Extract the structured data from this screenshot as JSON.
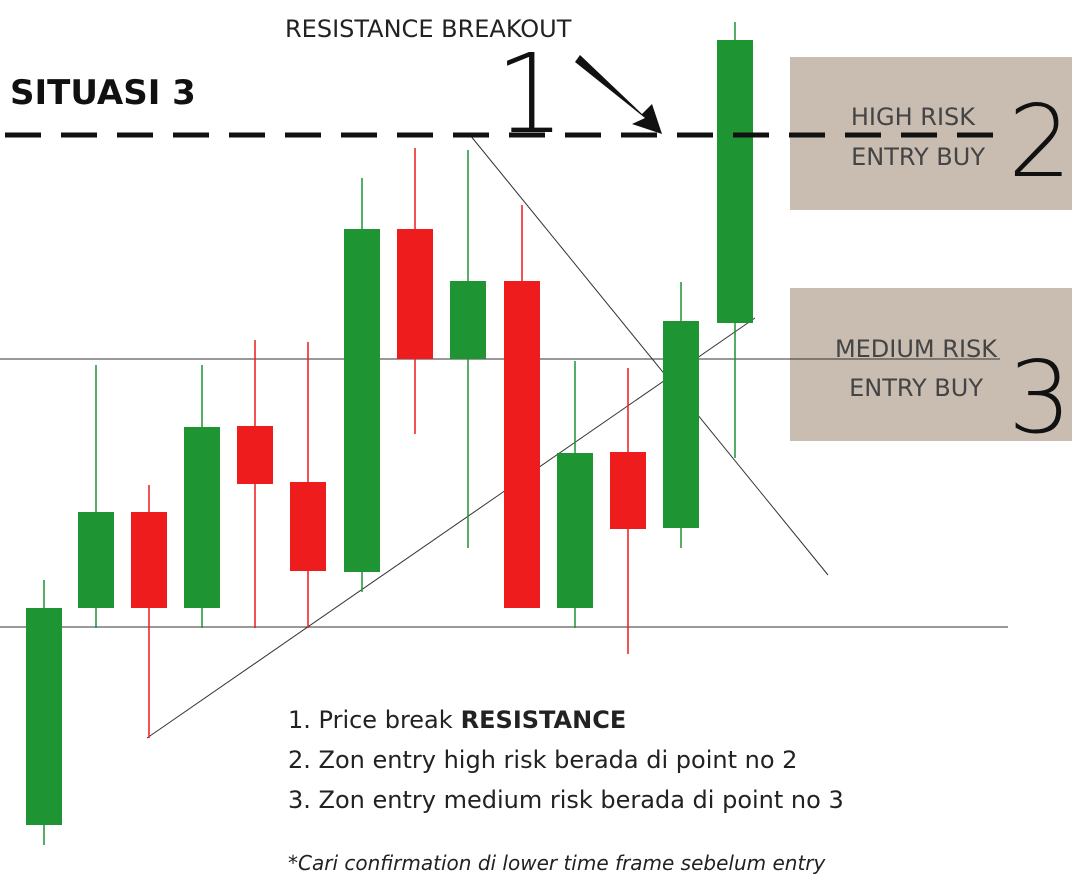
{
  "title": "SITUASI 3",
  "breakout_label": "RESISTANCE BREAKOUT",
  "point_1": "1",
  "zones": [
    {
      "line1": "HIGH RISK",
      "line2": "ENTRY BUY",
      "number": "2"
    },
    {
      "line1": "MEDIUM RISK",
      "line2": "ENTRY BUY",
      "number": "3"
    }
  ],
  "notes": [
    {
      "text": "1. Price break",
      "bold": "RESISTANCE"
    },
    {
      "text": "2. Zon entry high risk berada di point no 2"
    },
    {
      "text": "3. Zon entry medium risk berada di point no 3"
    }
  ],
  "footnote": "*Cari confirmation di lower time frame sebelum entry"
}
